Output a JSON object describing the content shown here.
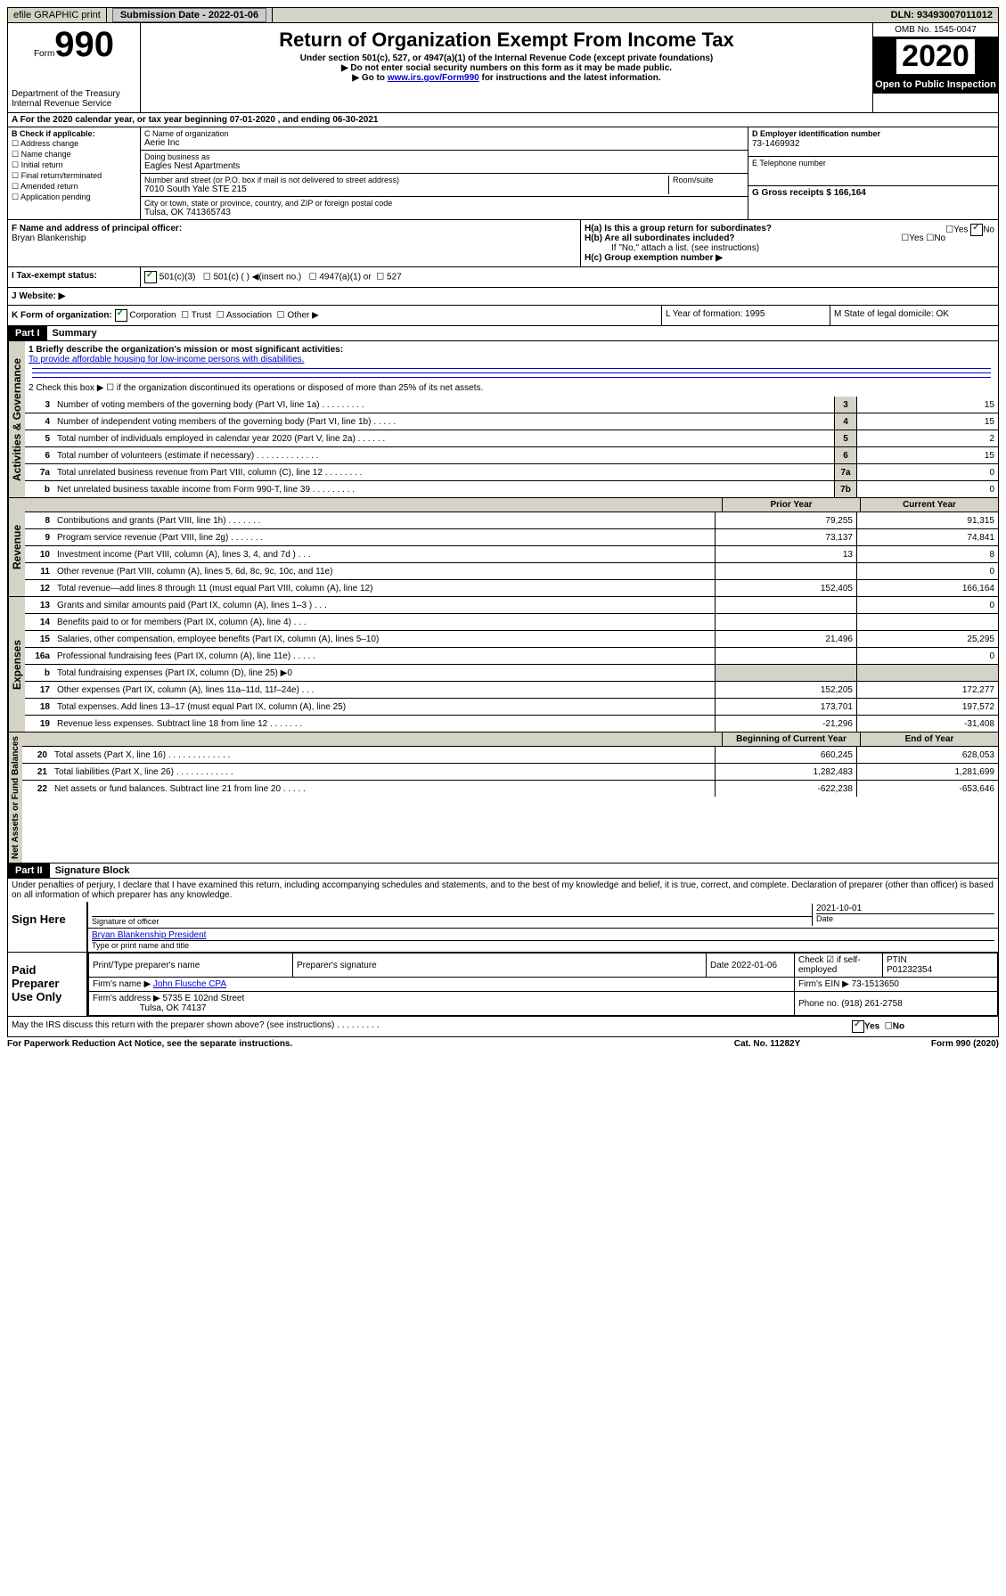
{
  "topbar": {
    "efile": "efile GRAPHIC print",
    "submission_label": "Submission Date - 2022-01-06",
    "dln": "DLN: 93493007011012"
  },
  "header": {
    "form_word": "Form",
    "form_num": "990",
    "dept": "Department of the Treasury Internal Revenue Service",
    "title": "Return of Organization Exempt From Income Tax",
    "sub1": "Under section 501(c), 527, or 4947(a)(1) of the Internal Revenue Code (except private foundations)",
    "sub2": "▶ Do not enter social security numbers on this form as it may be made public.",
    "sub3_pre": "▶ Go to ",
    "sub3_link": "www.irs.gov/Form990",
    "sub3_post": " for instructions and the latest information.",
    "omb": "OMB No. 1545-0047",
    "year": "2020",
    "open": "Open to Public Inspection"
  },
  "period": "A For the 2020 calendar year, or tax year beginning 07-01-2020    , and ending 06-30-2021",
  "boxB": {
    "label": "B Check if applicable:",
    "items": [
      "Address change",
      "Name change",
      "Initial return",
      "Final return/terminated",
      "Amended return",
      "Application pending"
    ]
  },
  "boxC": {
    "name_label": "C Name of organization",
    "name": "Aerie Inc",
    "dba_label": "Doing business as",
    "dba": "Eagles Nest Apartments",
    "addr_label": "Number and street (or P.O. box if mail is not delivered to street address)",
    "room_label": "Room/suite",
    "addr": "7010 South Yale STE 215",
    "city_label": "City or town, state or province, country, and ZIP or foreign postal code",
    "city": "Tulsa, OK  741365743"
  },
  "boxD": {
    "ein_label": "D Employer identification number",
    "ein": "73-1469932",
    "phone_label": "E Telephone number",
    "gross_label": "G Gross receipts $ 166,164"
  },
  "boxF": {
    "label": "F  Name and address of principal officer:",
    "name": "Bryan Blankenship"
  },
  "boxH": {
    "ha": "H(a)  Is this a group return for subordinates?",
    "hb": "H(b)  Are all subordinates included?",
    "hb_note": "If \"No,\" attach a list. (see instructions)",
    "hc": "H(c)  Group exemption number ▶",
    "yes": "Yes",
    "no": "No"
  },
  "rowI": {
    "label": "I   Tax-exempt status:",
    "c3": "501(c)(3)",
    "c": "501(c) (  ) ◀(insert no.)",
    "a1": "4947(a)(1) or",
    "r527": "527"
  },
  "rowJ": "J   Website: ▶",
  "rowK": {
    "label": "K Form of organization:",
    "corp": "Corporation",
    "trust": "Trust",
    "assoc": "Association",
    "other": "Other ▶"
  },
  "rowL": "L Year of formation: 1995",
  "rowM": "M State of legal domicile: OK",
  "part1": {
    "header": "Part I",
    "title": "Summary",
    "line1_label": "1  Briefly describe the organization's mission or most significant activities:",
    "line1_text": "To provide affordable housing for low-income persons with disabilities.",
    "line2": "2   Check this box ▶ ☐  if the organization discontinued its operations or disposed of more than 25% of its net assets.",
    "vert_gov": "Activities & Governance",
    "vert_rev": "Revenue",
    "vert_exp": "Expenses",
    "vert_net": "Net Assets or Fund Balances"
  },
  "gov_rows": [
    {
      "n": "3",
      "d": "Number of voting members of the governing body (Part VI, line 1a)   .   .   .   .   .   .   .   .   .",
      "c": "3",
      "v": "15"
    },
    {
      "n": "4",
      "d": "Number of independent voting members of the governing body (Part VI, line 1b)   .   .   .   .   .",
      "c": "4",
      "v": "15"
    },
    {
      "n": "5",
      "d": "Total number of individuals employed in calendar year 2020 (Part V, line 2a)   .   .   .   .   .   .",
      "c": "5",
      "v": "2"
    },
    {
      "n": "6",
      "d": "Total number of volunteers (estimate if necessary)   .   .   .   .   .   .   .   .   .   .   .   .   .",
      "c": "6",
      "v": "15"
    },
    {
      "n": "7a",
      "d": "Total unrelated business revenue from Part VIII, column (C), line 12   .   .   .   .   .   .   .   .",
      "c": "7a",
      "v": "0"
    },
    {
      "n": "b",
      "d": "Net unrelated business taxable income from Form 990-T, line 39   .   .   .   .   .   .   .   .   .",
      "c": "7b",
      "v": "0"
    }
  ],
  "twocol_header": {
    "prior": "Prior Year",
    "current": "Current Year"
  },
  "rev_rows": [
    {
      "n": "8",
      "d": "Contributions and grants (Part VIII, line 1h)   .   .   .   .   .   .   .",
      "p": "79,255",
      "c": "91,315"
    },
    {
      "n": "9",
      "d": "Program service revenue (Part VIII, line 2g)   .   .   .   .   .   .   .",
      "p": "73,137",
      "c": "74,841"
    },
    {
      "n": "10",
      "d": "Investment income (Part VIII, column (A), lines 3, 4, and 7d )   .   .   .",
      "p": "13",
      "c": "8"
    },
    {
      "n": "11",
      "d": "Other revenue (Part VIII, column (A), lines 5, 6d, 8c, 9c, 10c, and 11e)",
      "p": "",
      "c": "0"
    },
    {
      "n": "12",
      "d": "Total revenue—add lines 8 through 11 (must equal Part VIII, column (A), line 12)",
      "p": "152,405",
      "c": "166,164"
    }
  ],
  "exp_rows": [
    {
      "n": "13",
      "d": "Grants and similar amounts paid (Part IX, column (A), lines 1–3 )   .   .   .",
      "p": "",
      "c": "0"
    },
    {
      "n": "14",
      "d": "Benefits paid to or for members (Part IX, column (A), line 4)   .   .   .",
      "p": "",
      "c": ""
    },
    {
      "n": "15",
      "d": "Salaries, other compensation, employee benefits (Part IX, column (A), lines 5–10)",
      "p": "21,496",
      "c": "25,295"
    },
    {
      "n": "16a",
      "d": "Professional fundraising fees (Part IX, column (A), line 11e)   .   .   .   .   .",
      "p": "",
      "c": "0"
    },
    {
      "n": "b",
      "d": "Total fundraising expenses (Part IX, column (D), line 25) ▶0",
      "p": "shade",
      "c": "shade"
    },
    {
      "n": "17",
      "d": "Other expenses (Part IX, column (A), lines 11a–11d, 11f–24e)   .   .   .",
      "p": "152,205",
      "c": "172,277"
    },
    {
      "n": "18",
      "d": "Total expenses. Add lines 13–17 (must equal Part IX, column (A), line 25)",
      "p": "173,701",
      "c": "197,572"
    },
    {
      "n": "19",
      "d": "Revenue less expenses. Subtract line 18 from line 12   .   .   .   .   .   .   .",
      "p": "-21,296",
      "c": "-31,408"
    }
  ],
  "net_header": {
    "prior": "Beginning of Current Year",
    "current": "End of Year"
  },
  "net_rows": [
    {
      "n": "20",
      "d": "Total assets (Part X, line 16)   .   .   .   .   .   .   .   .   .   .   .   .   .",
      "p": "660,245",
      "c": "628,053"
    },
    {
      "n": "21",
      "d": "Total liabilities (Part X, line 26)   .   .   .   .   .   .   .   .   .   .   .   .",
      "p": "1,282,483",
      "c": "1,281,699"
    },
    {
      "n": "22",
      "d": "Net assets or fund balances. Subtract line 21 from line 20   .   .   .   .   .",
      "p": "-622,238",
      "c": "-653,646"
    }
  ],
  "part2": {
    "header": "Part II",
    "title": "Signature Block",
    "perjury": "Under penalties of perjury, I declare that I have examined this return, including accompanying schedules and statements, and to the best of my knowledge and belief, it is true, correct, and complete. Declaration of preparer (other than officer) is based on all information of which preparer has any knowledge."
  },
  "sign": {
    "label": "Sign Here",
    "sig_officer": "Signature of officer",
    "date": "2021-10-01",
    "date_label": "Date",
    "name_title": "Bryan Blankenship  President",
    "type_label": "Type or print name and title"
  },
  "paid": {
    "label": "Paid Preparer Use Only",
    "col1": "Print/Type preparer's name",
    "col2": "Preparer's signature",
    "col3": "Date 2022-01-06",
    "col4_label": "Check ☑ if self-employed",
    "col5_label": "PTIN",
    "col5_val": "P01232354",
    "firm_name_label": "Firm's name    ▶",
    "firm_name": "John Flusche CPA",
    "firm_ein_label": "Firm's EIN ▶",
    "firm_ein": "73-1513650",
    "firm_addr_label": "Firm's address ▶",
    "firm_addr1": "5735 E 102nd Street",
    "firm_addr2": "Tulsa, OK  74137",
    "phone_label": "Phone no.",
    "phone": "(918) 261-2758"
  },
  "discuss": "May the IRS discuss this return with the preparer shown above? (see instructions)   .   .   .   .   .   .   .   .   .",
  "footer": {
    "left": "For Paperwork Reduction Act Notice, see the separate instructions.",
    "mid": "Cat. No. 11282Y",
    "right": "Form 990 (2020)"
  }
}
